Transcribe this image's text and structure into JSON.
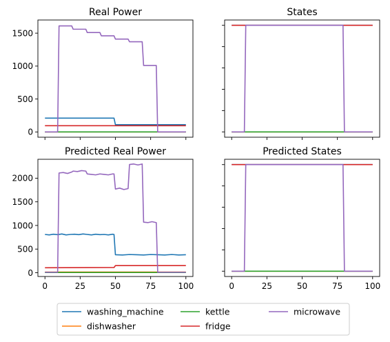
{
  "colors": {
    "washing_machine": "#1f77b4",
    "dishwasher": "#ff7f0e",
    "kettle": "#2ca02c",
    "fridge": "#d62728",
    "microwave": "#9467bd"
  },
  "legend": {
    "placement": "bottom-center",
    "columns": 3,
    "entries": [
      "washing_machine",
      "dishwasher",
      "kettle",
      "fridge",
      "microwave"
    ]
  },
  "chart_data": [
    {
      "type": "line",
      "title": "Real Power",
      "xlim": [
        -5,
        105
      ],
      "ylim": [
        -80,
        1700
      ],
      "xticks": [
        0,
        25,
        50,
        75,
        100
      ],
      "show_xtick_labels": false,
      "yticks": [
        0,
        500,
        1000,
        1500
      ],
      "ytick_labels": [
        "0",
        "500",
        "1000",
        "1500"
      ],
      "series": [
        {
          "name": "washing_machine",
          "x": [
            0,
            49,
            50,
            100
          ],
          "y": [
            210,
            210,
            110,
            110
          ]
        },
        {
          "name": "dishwasher",
          "x": [
            0,
            100
          ],
          "y": [
            0,
            0
          ]
        },
        {
          "name": "kettle",
          "x": [
            0,
            100
          ],
          "y": [
            0,
            0
          ]
        },
        {
          "name": "fridge",
          "x": [
            0,
            100
          ],
          "y": [
            95,
            95
          ]
        },
        {
          "name": "microwave",
          "x": [
            0,
            9,
            10,
            19,
            20,
            29,
            30,
            39,
            40,
            49,
            50,
            59,
            60,
            69,
            70,
            79,
            80,
            100
          ],
          "y": [
            0,
            0,
            1610,
            1610,
            1560,
            1560,
            1510,
            1510,
            1460,
            1460,
            1410,
            1410,
            1370,
            1370,
            1010,
            1010,
            0,
            0
          ]
        }
      ]
    },
    {
      "type": "line",
      "title": "States",
      "xlim": [
        -5,
        105
      ],
      "ylim": [
        -0.05,
        1.05
      ],
      "xticks": [
        0,
        25,
        50,
        75,
        100
      ],
      "show_xtick_labels": false,
      "yticks": [
        0,
        0.2,
        0.4,
        0.6,
        0.8,
        1.0
      ],
      "ytick_labels": [],
      "series": [
        {
          "name": "washing_machine",
          "x": [
            0,
            100
          ],
          "y": [
            1,
            1
          ]
        },
        {
          "name": "dishwasher",
          "x": [
            0,
            100
          ],
          "y": [
            0,
            0
          ]
        },
        {
          "name": "kettle",
          "x": [
            0,
            100
          ],
          "y": [
            0,
            0
          ]
        },
        {
          "name": "fridge",
          "x": [
            0,
            100
          ],
          "y": [
            1,
            1
          ]
        },
        {
          "name": "microwave",
          "x": [
            0,
            9,
            10,
            79,
            80,
            100
          ],
          "y": [
            0,
            0,
            1,
            1,
            0,
            0
          ]
        }
      ]
    },
    {
      "type": "line",
      "title": "Predicted Real Power",
      "xlim": [
        -5,
        105
      ],
      "ylim": [
        -80,
        2400
      ],
      "xticks": [
        0,
        25,
        50,
        75,
        100
      ],
      "show_xtick_labels": true,
      "xtick_labels": [
        "0",
        "25",
        "50",
        "75",
        "100"
      ],
      "yticks": [
        0,
        500,
        1000,
        1500,
        2000
      ],
      "ytick_labels": [
        "0",
        "500",
        "1000",
        "1500",
        "2000"
      ],
      "series": [
        {
          "name": "washing_machine",
          "x": [
            0,
            3,
            6,
            9,
            12,
            15,
            18,
            21,
            24,
            27,
            30,
            33,
            36,
            39,
            42,
            45,
            48,
            49,
            50,
            55,
            60,
            65,
            70,
            75,
            80,
            85,
            90,
            95,
            100
          ],
          "y": [
            810,
            800,
            815,
            805,
            820,
            800,
            810,
            815,
            805,
            820,
            810,
            800,
            815,
            805,
            810,
            800,
            815,
            810,
            380,
            375,
            385,
            380,
            375,
            385,
            380,
            375,
            385,
            375,
            380
          ]
        },
        {
          "name": "dishwasher",
          "x": [
            0,
            100
          ],
          "y": [
            15,
            15
          ]
        },
        {
          "name": "kettle",
          "x": [
            0,
            100
          ],
          "y": [
            5,
            5
          ]
        },
        {
          "name": "fridge",
          "x": [
            0,
            49,
            50,
            100
          ],
          "y": [
            105,
            110,
            150,
            150
          ]
        },
        {
          "name": "microwave",
          "x": [
            0,
            9,
            10,
            13,
            16,
            19,
            20,
            23,
            26,
            29,
            30,
            33,
            36,
            39,
            42,
            45,
            48,
            49,
            50,
            53,
            56,
            59,
            60,
            63,
            66,
            69,
            70,
            73,
            76,
            79,
            80,
            100
          ],
          "y": [
            10,
            10,
            2110,
            2120,
            2100,
            2130,
            2150,
            2140,
            2160,
            2150,
            2090,
            2080,
            2070,
            2090,
            2080,
            2070,
            2090,
            2090,
            1770,
            1790,
            1760,
            1780,
            2290,
            2300,
            2280,
            2300,
            1070,
            1060,
            1080,
            1060,
            10,
            10
          ]
        }
      ]
    },
    {
      "type": "line",
      "title": "Predicted States",
      "xlim": [
        -5,
        105
      ],
      "ylim": [
        -0.05,
        1.05
      ],
      "xticks": [
        0,
        25,
        50,
        75,
        100
      ],
      "show_xtick_labels": true,
      "xtick_labels": [
        "0",
        "25",
        "50",
        "75",
        "100"
      ],
      "yticks": [
        0,
        0.2,
        0.4,
        0.6,
        0.8,
        1.0
      ],
      "ytick_labels": [],
      "series": [
        {
          "name": "washing_machine",
          "x": [
            0,
            100
          ],
          "y": [
            1,
            1
          ]
        },
        {
          "name": "dishwasher",
          "x": [
            0,
            100
          ],
          "y": [
            0,
            0
          ]
        },
        {
          "name": "kettle",
          "x": [
            0,
            100
          ],
          "y": [
            0,
            0
          ]
        },
        {
          "name": "fridge",
          "x": [
            0,
            100
          ],
          "y": [
            1,
            1
          ]
        },
        {
          "name": "microwave",
          "x": [
            0,
            9,
            10,
            79,
            80,
            100
          ],
          "y": [
            0,
            0,
            1,
            1,
            0,
            0
          ]
        }
      ]
    }
  ]
}
